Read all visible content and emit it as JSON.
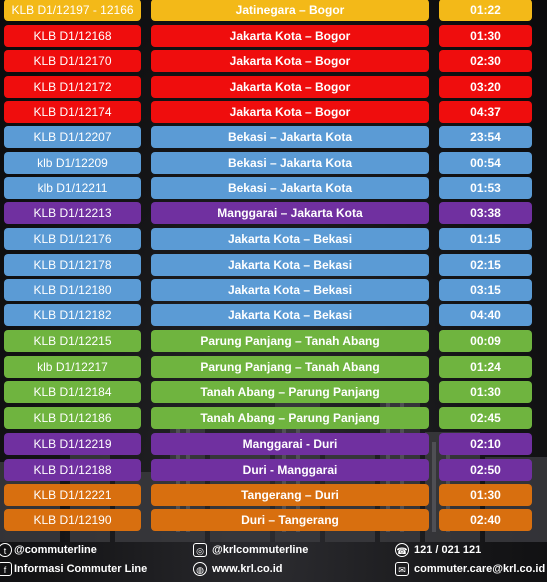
{
  "colors": {
    "yellow": "#f3b918",
    "red": "#ef0d0d",
    "blue": "#5b9bd5",
    "purple": "#7030a0",
    "green": "#6fb43f",
    "orange": "#d86f0f"
  },
  "schedule": [
    {
      "id": "KLB D1/12197 - 12166",
      "route": "Jatinegara – Bogor",
      "time": "01:22",
      "color": "yellow"
    },
    {
      "id": "KLB D1/12168",
      "route": "Jakarta Kota – Bogor",
      "time": "01:30",
      "color": "red"
    },
    {
      "id": "KLB D1/12170",
      "route": "Jakarta Kota – Bogor",
      "time": "02:30",
      "color": "red"
    },
    {
      "id": "KLB D1/12172",
      "route": "Jakarta Kota – Bogor",
      "time": "03:20",
      "color": "red"
    },
    {
      "id": "KLB D1/12174",
      "route": "Jakarta Kota – Bogor",
      "time": "04:37",
      "color": "red"
    },
    {
      "id": "KLB D1/12207",
      "route": "Bekasi – Jakarta Kota",
      "time": "23:54",
      "color": "blue"
    },
    {
      "id": "klb D1/12209",
      "route": "Bekasi – Jakarta Kota",
      "time": "00:54",
      "color": "blue"
    },
    {
      "id": "klb D1/12211",
      "route": "Bekasi – Jakarta Kota",
      "time": "01:53",
      "color": "blue"
    },
    {
      "id": "KLB D1/12213",
      "route": "Manggarai – Jakarta Kota",
      "time": "03:38",
      "color": "purple"
    },
    {
      "id": "KLB D1/12176",
      "route": "Jakarta Kota – Bekasi",
      "time": "01:15",
      "color": "blue"
    },
    {
      "id": "KLB D1/12178",
      "route": "Jakarta Kota – Bekasi",
      "time": "02:15",
      "color": "blue"
    },
    {
      "id": "KLB D1/12180",
      "route": "Jakarta Kota – Bekasi",
      "time": "03:15",
      "color": "blue"
    },
    {
      "id": "KLB D1/12182",
      "route": "Jakarta Kota – Bekasi",
      "time": "04:40",
      "color": "blue"
    },
    {
      "id": "KLB D1/12215",
      "route": "Parung Panjang – Tanah Abang",
      "time": "00:09",
      "color": "green"
    },
    {
      "id": "klb D1/12217",
      "route": "Parung Panjang – Tanah Abang",
      "time": "01:24",
      "color": "green"
    },
    {
      "id": "KLB D1/12184",
      "route": "Tanah Abang – Parung Panjang",
      "time": "01:30",
      "color": "green"
    },
    {
      "id": "KLB D1/12186",
      "route": "Tanah Abang – Parung Panjang",
      "time": "02:45",
      "color": "green"
    },
    {
      "id": "KLB D1/12219",
      "route": "Manggarai - Duri",
      "time": "02:10",
      "color": "purple"
    },
    {
      "id": "KLB D1/12188",
      "route": "Duri - Manggarai",
      "time": "02:50",
      "color": "purple"
    },
    {
      "id": "KLB D1/12221",
      "route": "Tangerang – Duri",
      "time": "01:30",
      "color": "orange"
    },
    {
      "id": "KLB D1/12190",
      "route": "Duri – Tangerang",
      "time": "02:40",
      "color": "orange"
    }
  ],
  "footer": {
    "twitter": "@commuterline",
    "facebook": "Informasi Commuter Line",
    "instagram": "@krlcommuterline",
    "website": "www.krl.co.id",
    "phone": "121 / 021 121",
    "email": "commuter.care@krl.co.id",
    "icons": {
      "twitter": "twitter-icon",
      "facebook": "facebook-icon",
      "instagram": "instagram-icon",
      "website": "globe-icon",
      "phone": "phone-icon",
      "email": "mail-icon"
    }
  }
}
